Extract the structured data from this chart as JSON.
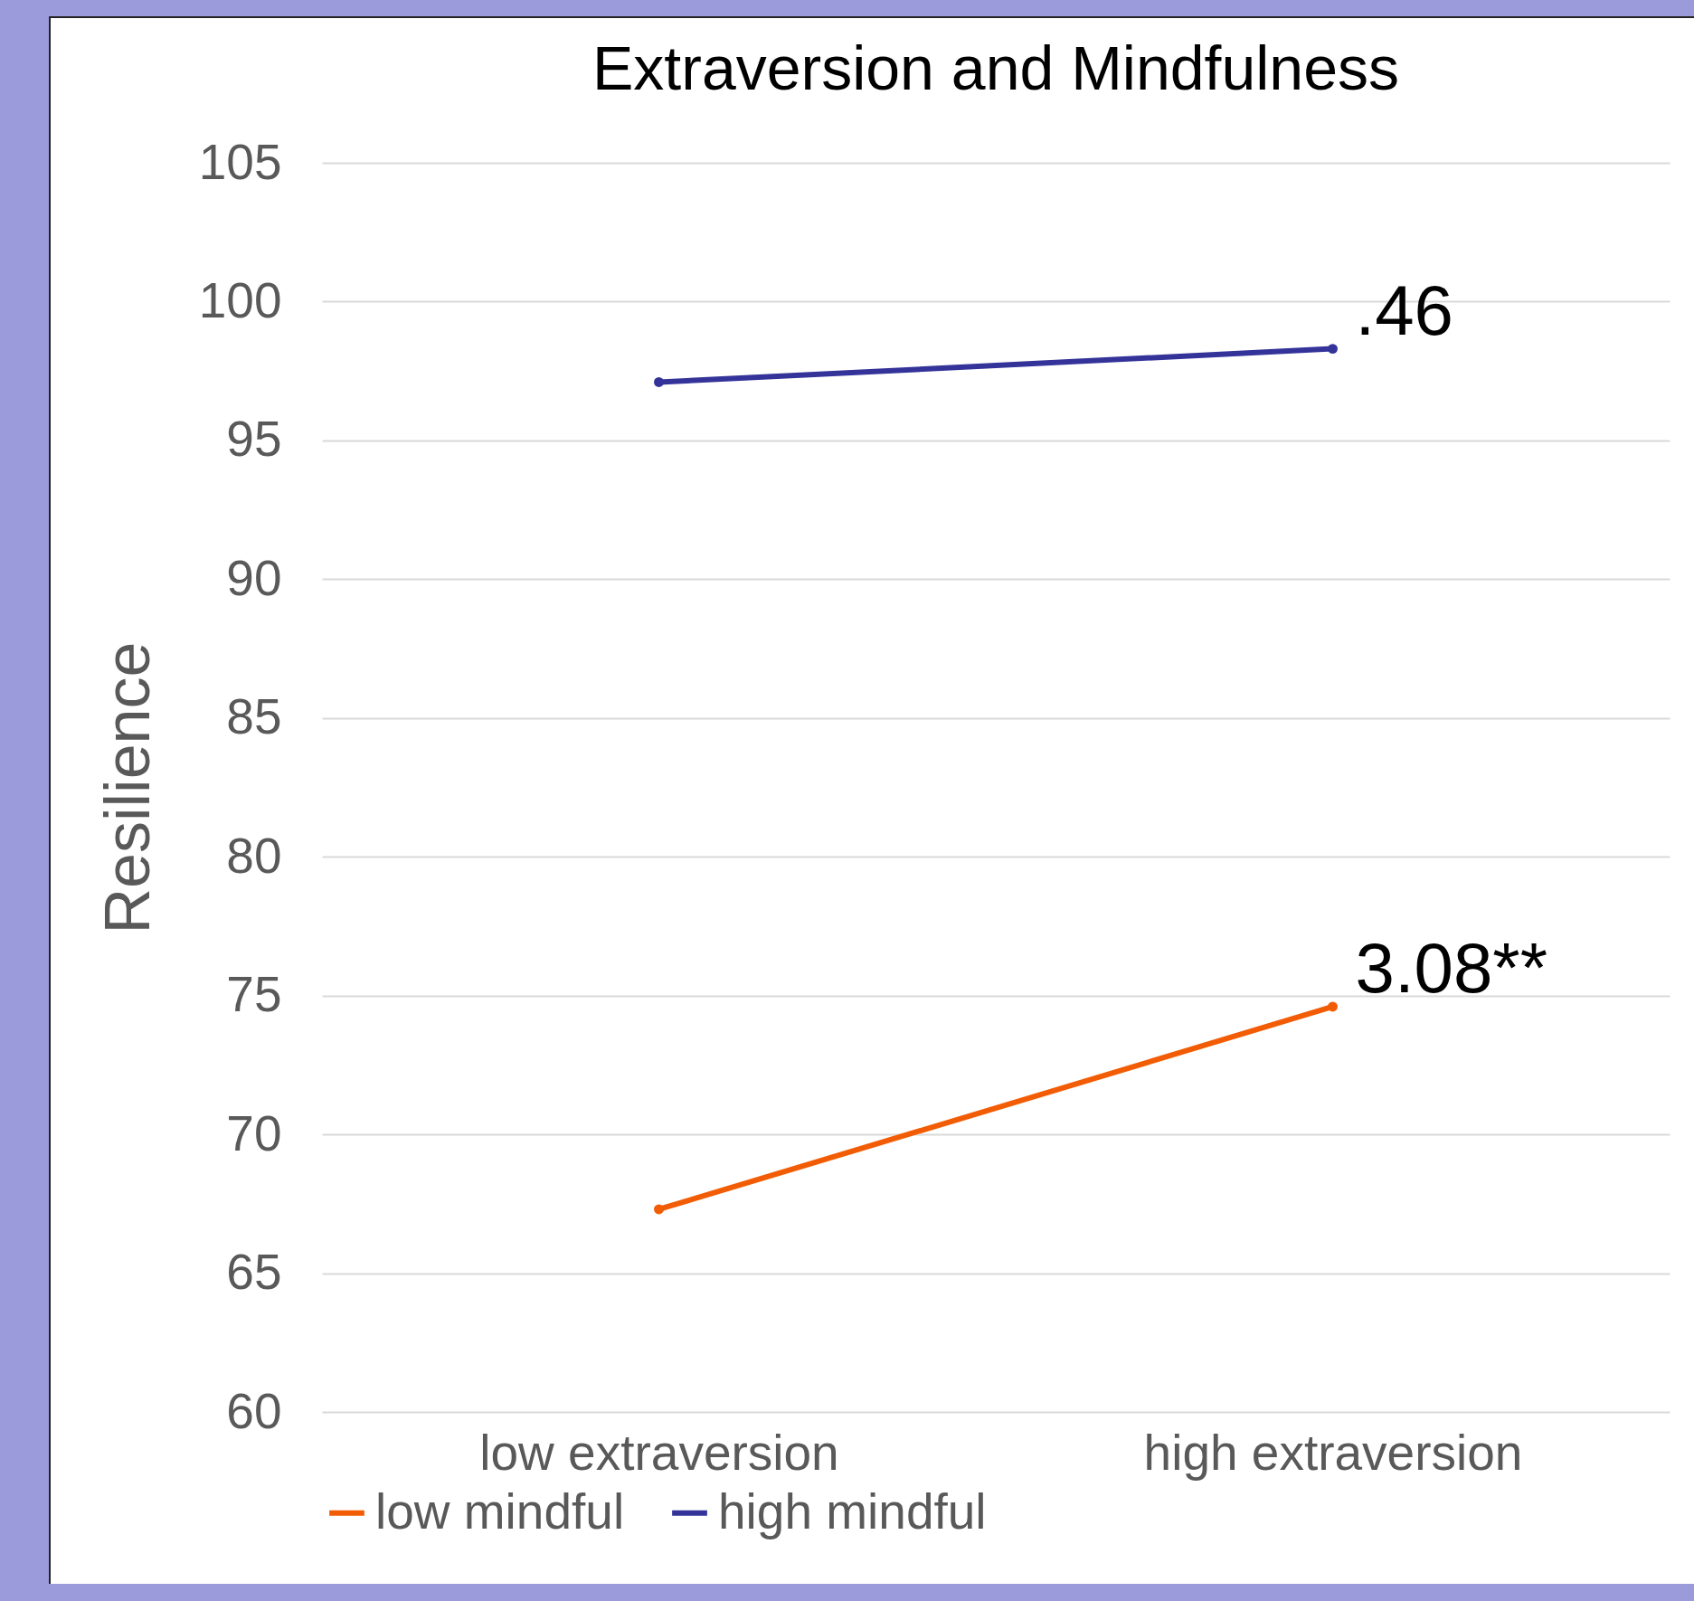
{
  "chart_data": {
    "type": "line",
    "title": "Extraversion and Mindfulness",
    "ylabel": "Resilience",
    "categories": [
      "low extraversion",
      "high extraversion"
    ],
    "series": [
      {
        "name": "low mindful",
        "color": "#f25c05",
        "values": [
          67.3,
          74.6
        ]
      },
      {
        "name": "high mindful",
        "color": "#333399",
        "values": [
          97.1,
          98.3
        ]
      }
    ],
    "ylim": [
      60,
      105
    ],
    "yticks": [
      60,
      65,
      70,
      75,
      80,
      85,
      90,
      95,
      100,
      105
    ],
    "grid": "y",
    "legend": "bottom",
    "marker": "circle",
    "annotations": [
      {
        "text": ".46",
        "x": "high extraversion",
        "y": 98.3
      },
      {
        "text": "3.08**",
        "x": "high extraversion",
        "y": 74.6
      }
    ]
  }
}
